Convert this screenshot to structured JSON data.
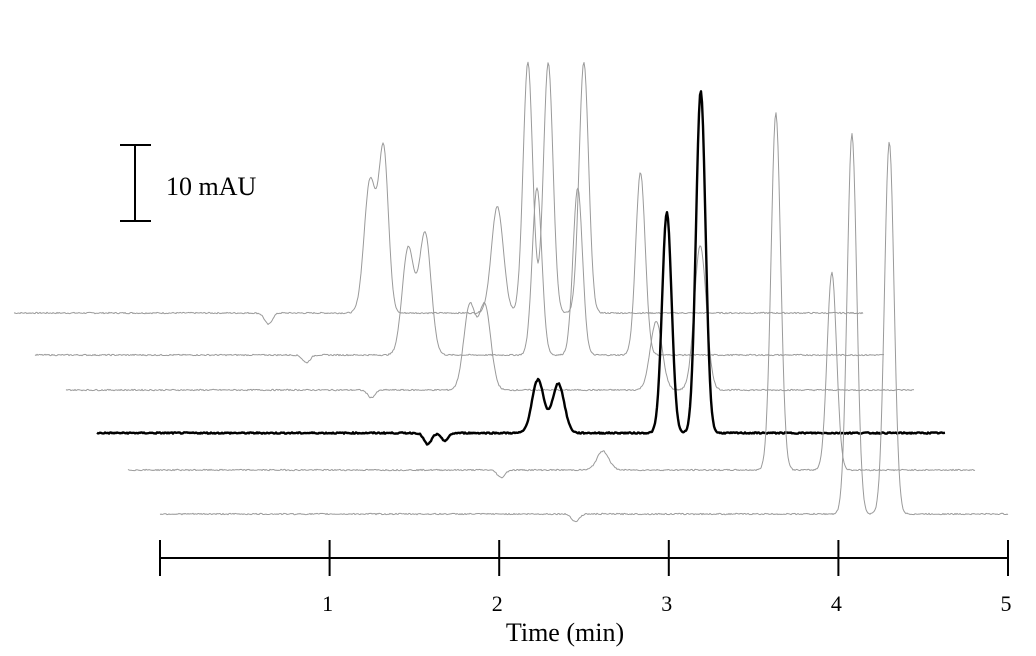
{
  "chart_data": {
    "type": "line",
    "title": "",
    "xlabel": "Time (min)",
    "ylabel": "",
    "xlim": [
      0,
      5
    ],
    "x_ticks": [
      0,
      1,
      2,
      3,
      4,
      5
    ],
    "x_tick_labels": [
      "",
      "1",
      "2",
      "3",
      "4",
      "5"
    ],
    "scale_bar": {
      "label": "10 mAU",
      "value": 10,
      "unit": "mAU"
    },
    "layout": "stacked-offset",
    "grid": false,
    "legend": "none",
    "colors": {
      "highlight": "#000000",
      "trace": "#9a9a9a",
      "axis": "#000000"
    },
    "series": [
      {
        "highlight": false,
        "features": [
          {
            "time": 1.5,
            "height": -1.5,
            "shape": "dip"
          },
          {
            "time": 2.1,
            "height": 17.5
          },
          {
            "time": 2.18,
            "height": 21.0
          },
          {
            "time": 2.85,
            "height": 14.0
          },
          {
            "time": 3.03,
            "height": 33.0
          },
          {
            "time": 3.15,
            "height": 33.0
          },
          {
            "time": 3.36,
            "height": 33.0
          }
        ]
      },
      {
        "highlight": false,
        "features": [
          {
            "time": 1.6,
            "height": -1.0,
            "shape": "dip"
          },
          {
            "time": 2.2,
            "height": 14.0
          },
          {
            "time": 2.3,
            "height": 16.0
          },
          {
            "time": 2.96,
            "height": 22.0
          },
          {
            "time": 3.2,
            "height": 22.0
          },
          {
            "time": 3.57,
            "height": 24.0
          }
        ]
      },
      {
        "highlight": false,
        "features": [
          {
            "time": 1.8,
            "height": -1.0,
            "shape": "dip"
          },
          {
            "time": 2.38,
            "height": 11.0
          },
          {
            "time": 2.47,
            "height": 11.0
          },
          {
            "time": 3.48,
            "height": 9.0
          },
          {
            "time": 3.74,
            "height": 19.0
          }
        ]
      },
      {
        "highlight": true,
        "features": [
          {
            "time": 1.95,
            "height": -1.5,
            "shape": "dip"
          },
          {
            "time": 2.05,
            "height": -1.0,
            "shape": "dip"
          },
          {
            "time": 2.6,
            "height": 7.0
          },
          {
            "time": 2.72,
            "height": 6.5
          },
          {
            "time": 3.36,
            "height": 29.0
          },
          {
            "time": 3.56,
            "height": 45.0
          }
        ]
      },
      {
        "highlight": false,
        "features": [
          {
            "time": 2.2,
            "height": -1.0,
            "shape": "dip"
          },
          {
            "time": 2.8,
            "height": 2.5
          },
          {
            "time": 3.82,
            "height": 47.0
          },
          {
            "time": 4.15,
            "height": 26.0
          }
        ]
      },
      {
        "highlight": false,
        "features": [
          {
            "time": 2.45,
            "height": -1.0,
            "shape": "dip"
          },
          {
            "time": 4.08,
            "height": 50.0
          },
          {
            "time": 4.3,
            "height": 49.0
          }
        ]
      }
    ]
  }
}
